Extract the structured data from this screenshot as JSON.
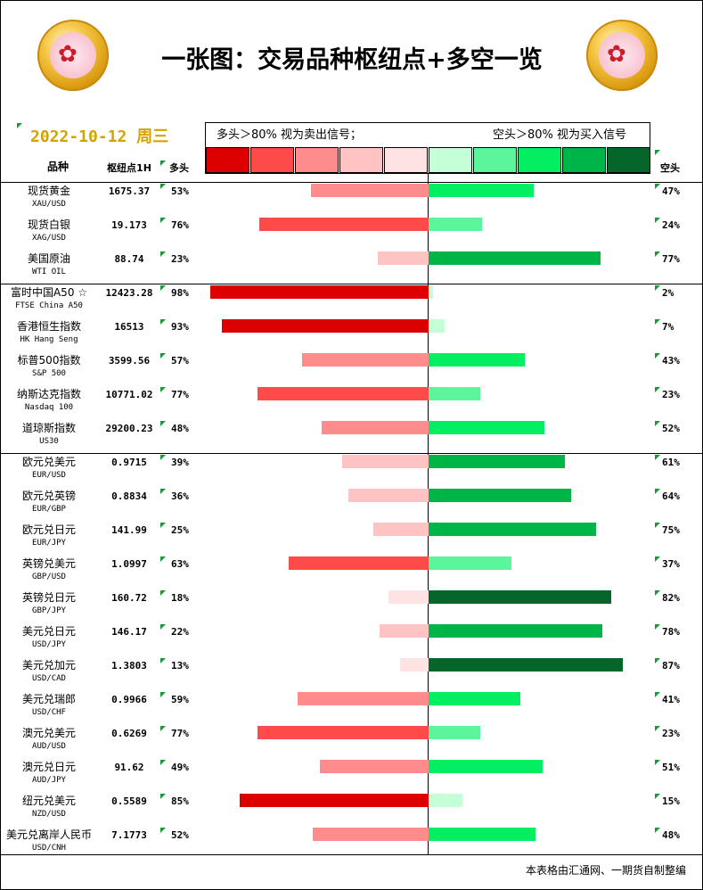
{
  "header": {
    "title": "一张图：交易品种枢纽点+多空一览",
    "date": "2022-10-12",
    "weekday": "周三",
    "logo_icon": "gold-flower-medallion-icon",
    "legend_left": "多头＞80% 视为卖出信号；",
    "legend_right": "空头＞80% 视为买入信号"
  },
  "columns": {
    "instrument": "品种",
    "pivot": "枢纽点1H",
    "long": "多头",
    "short": "空头"
  },
  "colors": {
    "long_scale": [
      "#dd0000",
      "#ff4a4a",
      "#ff8c8c",
      "#ffc3c3",
      "#ffe3e3"
    ],
    "short_scale": [
      "#c4ffd8",
      "#5cf59c",
      "#03ef61",
      "#00b548",
      "#046629"
    ],
    "marker": "#1a9a3a"
  },
  "footer": {
    "credit": "本表格由汇通网、一期货自制整编"
  },
  "chart_data": {
    "type": "bar",
    "orientation": "horizontal-diverging",
    "xlim": [
      0,
      100
    ],
    "series": [
      {
        "name": "多头",
        "values": [
          53,
          76,
          23,
          98,
          93,
          57,
          77,
          48,
          39,
          36,
          25,
          63,
          18,
          22,
          13,
          59,
          77,
          49,
          85,
          52
        ]
      },
      {
        "name": "空头",
        "values": [
          47,
          24,
          77,
          2,
          7,
          43,
          23,
          52,
          61,
          64,
          75,
          37,
          82,
          78,
          87,
          41,
          23,
          51,
          15,
          48
        ]
      }
    ],
    "rows": [
      {
        "cn": "现货黄金",
        "en": "XAU/USD",
        "pivot": "1675.37",
        "long": 53,
        "short": 47,
        "long_label": "53%",
        "short_label": "47%"
      },
      {
        "cn": "现货白银",
        "en": "XAG/USD",
        "pivot": "19.173",
        "long": 76,
        "short": 24,
        "long_label": "76%",
        "short_label": "24%"
      },
      {
        "cn": "美国原油",
        "en": "WTI OIL",
        "pivot": "88.74",
        "long": 23,
        "short": 77,
        "long_label": "23%",
        "short_label": "77%"
      },
      {
        "cn": "富时中国A50 ☆",
        "en": "FTSE China A50",
        "pivot": "12423.28",
        "long": 98,
        "short": 2,
        "long_label": "98%",
        "short_label": "2%"
      },
      {
        "cn": "香港恒生指数",
        "en": "HK Hang Seng",
        "pivot": "16513",
        "long": 93,
        "short": 7,
        "long_label": "93%",
        "short_label": "7%"
      },
      {
        "cn": "标普500指数",
        "en": "S&P 500",
        "pivot": "3599.56",
        "long": 57,
        "short": 43,
        "long_label": "57%",
        "short_label": "43%"
      },
      {
        "cn": "纳斯达克指数",
        "en": "Nasdaq 100",
        "pivot": "10771.02",
        "long": 77,
        "short": 23,
        "long_label": "77%",
        "short_label": "23%"
      },
      {
        "cn": "道琼斯指数",
        "en": "US30",
        "pivot": "29200.23",
        "long": 48,
        "short": 52,
        "long_label": "48%",
        "short_label": "52%"
      },
      {
        "cn": "欧元兑美元",
        "en": "EUR/USD",
        "pivot": "0.9715",
        "long": 39,
        "short": 61,
        "long_label": "39%",
        "short_label": "61%"
      },
      {
        "cn": "欧元兑英镑",
        "en": "EUR/GBP",
        "pivot": "0.8834",
        "long": 36,
        "short": 64,
        "long_label": "36%",
        "short_label": "64%"
      },
      {
        "cn": "欧元兑日元",
        "en": "EUR/JPY",
        "pivot": "141.99",
        "long": 25,
        "short": 75,
        "long_label": "25%",
        "short_label": "75%"
      },
      {
        "cn": "英镑兑美元",
        "en": "GBP/USD",
        "pivot": "1.0997",
        "long": 63,
        "short": 37,
        "long_label": "63%",
        "short_label": "37%"
      },
      {
        "cn": "英镑兑日元",
        "en": "GBP/JPY",
        "pivot": "160.72",
        "long": 18,
        "short": 82,
        "long_label": "18%",
        "short_label": "82%"
      },
      {
        "cn": "美元兑日元",
        "en": "USD/JPY",
        "pivot": "146.17",
        "long": 22,
        "short": 78,
        "long_label": "22%",
        "short_label": "78%"
      },
      {
        "cn": "美元兑加元",
        "en": "USD/CAD",
        "pivot": "1.3803",
        "long": 13,
        "short": 87,
        "long_label": "13%",
        "short_label": "87%"
      },
      {
        "cn": "美元兑瑞郎",
        "en": "USD/CHF",
        "pivot": "0.9966",
        "long": 59,
        "short": 41,
        "long_label": "59%",
        "short_label": "41%"
      },
      {
        "cn": "澳元兑美元",
        "en": "AUD/USD",
        "pivot": "0.6269",
        "long": 77,
        "short": 23,
        "long_label": "77%",
        "short_label": "23%"
      },
      {
        "cn": "澳元兑日元",
        "en": "AUD/JPY",
        "pivot": "91.62",
        "long": 49,
        "short": 51,
        "long_label": "49%",
        "short_label": "51%"
      },
      {
        "cn": "纽元兑美元",
        "en": "NZD/USD",
        "pivot": "0.5589",
        "long": 85,
        "short": 15,
        "long_label": "85%",
        "short_label": "15%"
      },
      {
        "cn": "美元兑离岸人民币",
        "en": "USD/CNH",
        "pivot": "7.1773",
        "long": 52,
        "short": 48,
        "long_label": "52%",
        "short_label": "48%"
      }
    ]
  }
}
